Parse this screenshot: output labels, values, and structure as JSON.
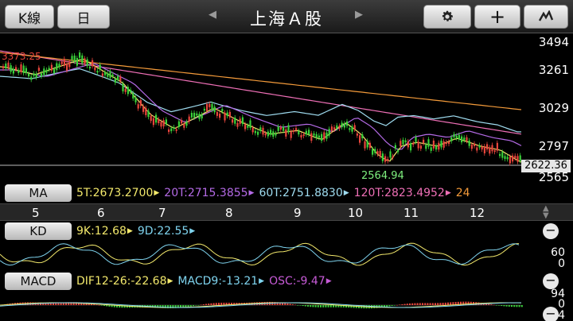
{
  "toolbar": {
    "kline_label": "K線",
    "period_label": "日",
    "title": "上海Ａ股",
    "prev_arrow": "◀",
    "next_arrow": "▶",
    "plus_label": "+",
    "settings_icon": "gear-icon",
    "trend_icon": "chart-trend-icon"
  },
  "price_chart": {
    "y_ticks": [
      "3494",
      "3261",
      "3029",
      "2797",
      "2565"
    ],
    "high_marker": "3373.25",
    "low_marker": "2564.94",
    "last_price": "2622.36"
  },
  "ma_legend": {
    "button": "MA",
    "items": [
      {
        "text": "5T:2673.2700",
        "color": "#f3e96c"
      },
      {
        "text": "20T:2715.3855",
        "color": "#b46ae6"
      },
      {
        "text": "60T:2751.8830",
        "color": "#9fdcf0"
      },
      {
        "text": "120T:2823.4952",
        "color": "#ee6fb6"
      },
      {
        "text": "24",
        "color": "#f39a3a"
      }
    ]
  },
  "x_axis": {
    "months": [
      "5",
      "6",
      "7",
      "8",
      "9",
      "10",
      "11",
      "12"
    ]
  },
  "kd": {
    "button": "KD",
    "k_label": "9K:12.68",
    "d_label": "9D:22.55",
    "ticks": [
      "60",
      "0"
    ],
    "k_color": "#f3e96c",
    "d_color": "#7fd4ef"
  },
  "macd": {
    "button": "MACD",
    "dif_label": "DIF12-26:-22.68",
    "macd_label": "MACD9:-13.21",
    "osc_label": "OSC:-9.47",
    "ticks": [
      "94",
      "0",
      "-94"
    ],
    "dif_color": "#f3e96c",
    "macd_color": "#7fd4ef",
    "osc_color": "#c75bd7"
  },
  "colors": {
    "up": "#e8453c",
    "down": "#3ad13a",
    "background": "#000000"
  }
}
